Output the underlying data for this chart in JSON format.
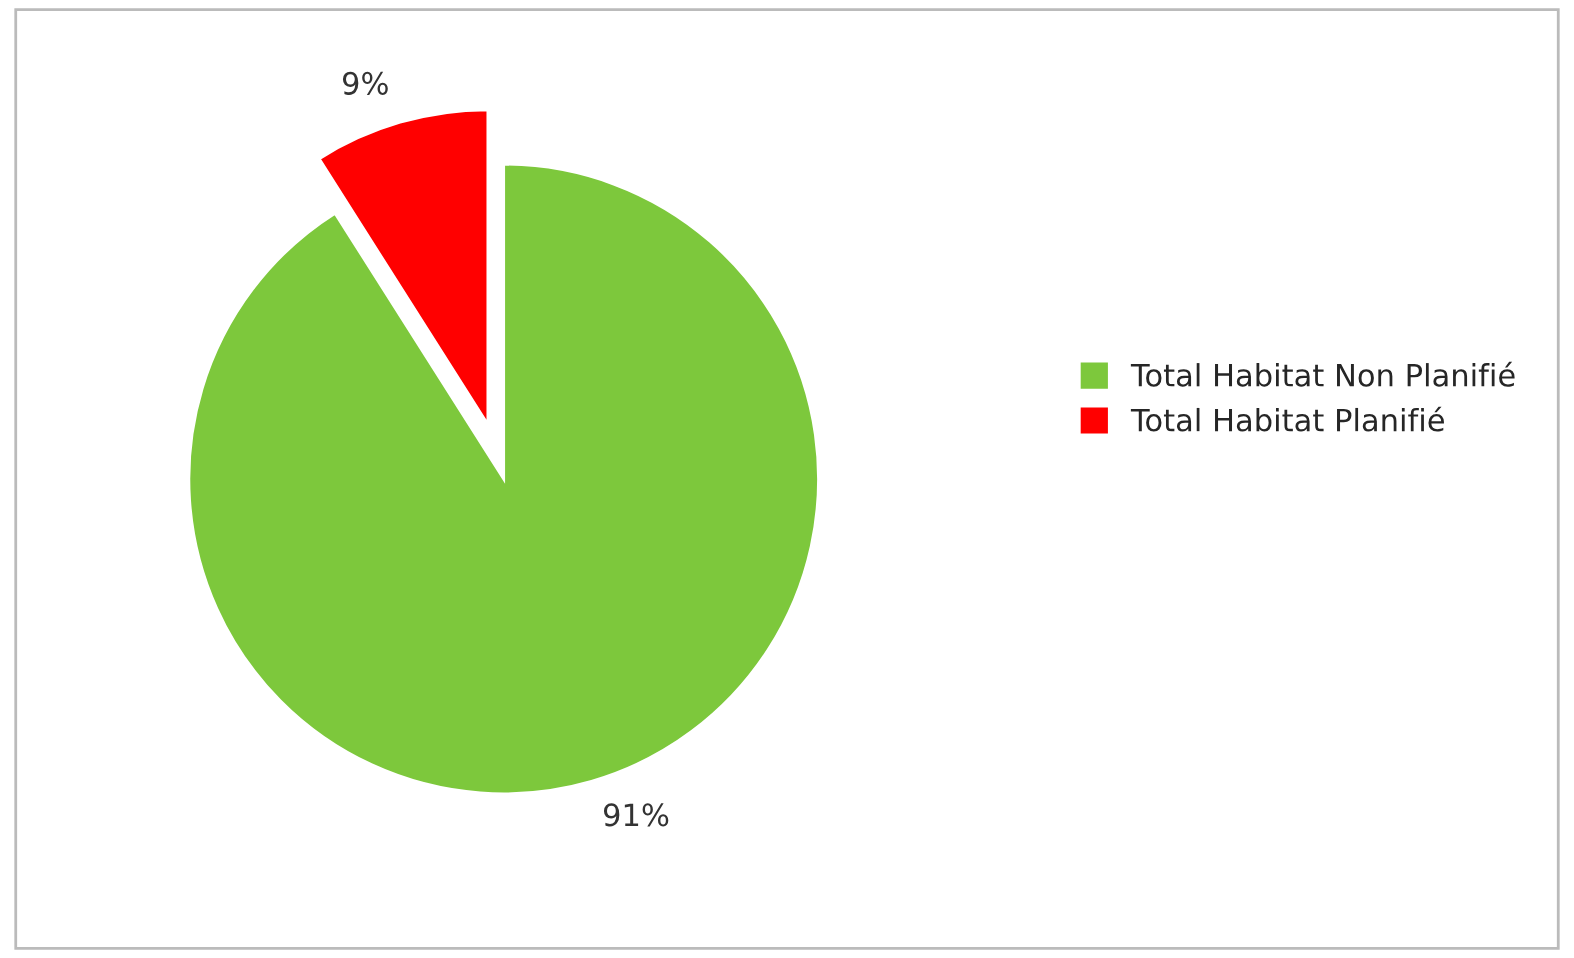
{
  "chart_data": {
    "type": "pie",
    "categories": [
      "Total Habitat Non Planifié",
      "Total Habitat Planifié"
    ],
    "values": [
      91,
      9
    ],
    "colors": [
      "#7dc83c",
      "#ff0000"
    ],
    "value_labels": [
      "91%",
      "9%"
    ],
    "legend": "right"
  }
}
